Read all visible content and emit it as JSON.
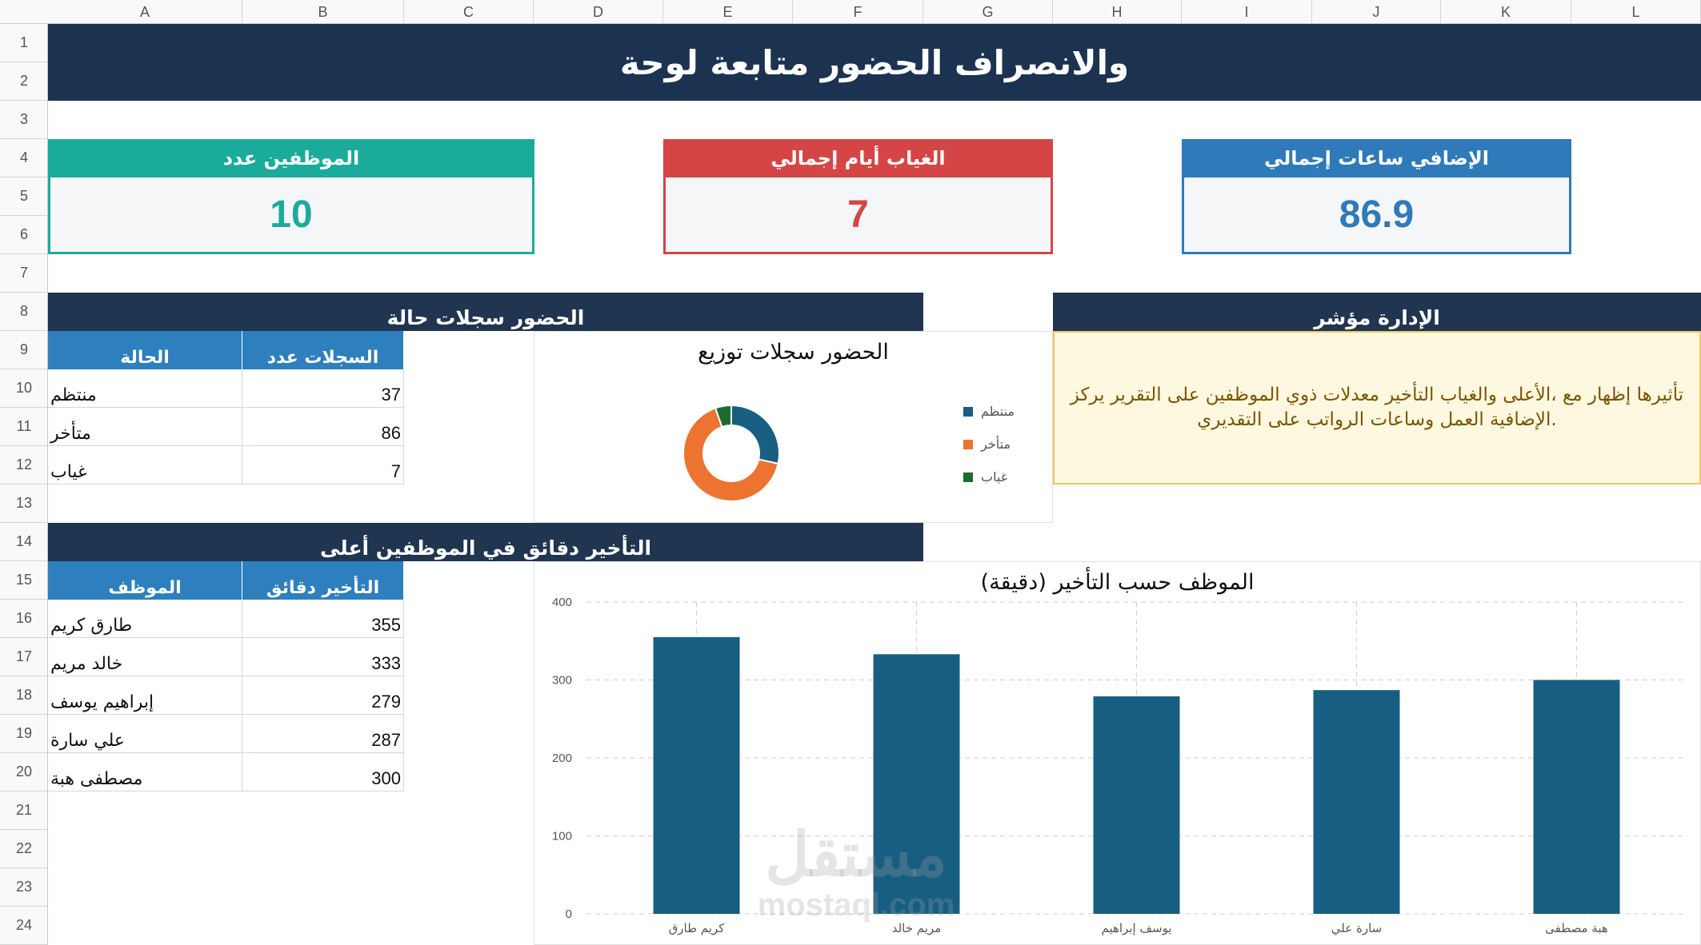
{
  "sheet": {
    "columns": [
      "A",
      "B",
      "C",
      "D",
      "E",
      "F",
      "G",
      "H",
      "I",
      "J",
      "K",
      "L"
    ],
    "rows": [
      "1",
      "2",
      "3",
      "4",
      "5",
      "6",
      "7",
      "8",
      "9",
      "10",
      "11",
      "12",
      "13",
      "14",
      "15",
      "16",
      "17",
      "18",
      "19",
      "20",
      "21",
      "22",
      "23",
      "24"
    ]
  },
  "title": "والانصراف الحضور متابعة لوحة",
  "kpis": {
    "employees": {
      "label": "الموظفين عدد",
      "value": "10",
      "color": "#1aab9b"
    },
    "absence": {
      "label": "الغياب أيام إجمالي",
      "value": "7",
      "color": "#d64545"
    },
    "overtime": {
      "label": "الإضافي ساعات إجمالي",
      "value": "86.9",
      "color": "#2f7ab8"
    }
  },
  "status_section": {
    "title": "الحضور سجلات حالة",
    "headers": {
      "status": "الحالة",
      "count": "السجلات عدد"
    },
    "rows": [
      {
        "status": "منتظم",
        "count": "37"
      },
      {
        "status": "متأخر",
        "count": "86"
      },
      {
        "status": "غياب",
        "count": "7"
      }
    ]
  },
  "management_section": {
    "title": "الإدارة مؤشر",
    "text": "تأثيرها إظهار مع ،الأعلى والغياب التأخير معدلات ذوي الموظفين على التقرير يركز الإضافية العمل وساعات الرواتب على التقديري."
  },
  "late_section": {
    "title": "التأخير دقائق في الموظفين أعلى",
    "headers": {
      "employee": "الموظف",
      "minutes": "التأخير دقائق"
    },
    "rows": [
      {
        "employee": "طارق كريم",
        "minutes": "355"
      },
      {
        "employee": "خالد مريم",
        "minutes": "333"
      },
      {
        "employee": "إبراهيم يوسف",
        "minutes": "279"
      },
      {
        "employee": "علي سارة",
        "minutes": "287"
      },
      {
        "employee": "مصطفى هبة",
        "minutes": "300"
      }
    ]
  },
  "watermark": {
    "line1": "مستقل",
    "line2": "mostaql.com"
  },
  "chart_data": [
    {
      "type": "pie",
      "title": "الحضور سجلات توزيع",
      "categories": [
        "منتظم",
        "متأخر",
        "غياب"
      ],
      "values": [
        37,
        86,
        7
      ],
      "colors": [
        "#1a5e82",
        "#ec7430",
        "#1e6b30"
      ],
      "donut": true,
      "legend": "right"
    },
    {
      "type": "bar",
      "title": "(دقيقة) الموظف حسب التأخير",
      "categories": [
        "كريم طارق",
        "مريم خالد",
        "يوسف إبراهيم",
        "سارة علي",
        "هبة مصطفى"
      ],
      "values": [
        355,
        333,
        279,
        287,
        300
      ],
      "color": "#185e82",
      "ylim": [
        0,
        400
      ],
      "yticks": [
        "0",
        "100",
        "200",
        "300",
        "400"
      ],
      "grid": true
    }
  ]
}
